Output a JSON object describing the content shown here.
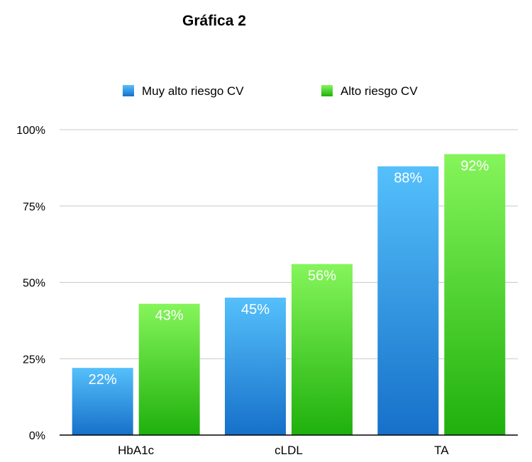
{
  "chart_data": {
    "type": "bar",
    "title": "Gráfica 2",
    "categories": [
      "HbA1c",
      "cLDL",
      "TA"
    ],
    "series": [
      {
        "name": "Muy alto riesgo CV",
        "values": [
          22,
          45,
          88
        ],
        "labels": [
          "22%",
          "45%",
          "88%"
        ],
        "color": "#2f9be6"
      },
      {
        "name": "Alto riesgo CV",
        "values": [
          43,
          56,
          92
        ],
        "labels": [
          "43%",
          "56%",
          "92%"
        ],
        "color": "#4fd12a"
      }
    ],
    "y_ticks": [
      {
        "value": 0,
        "label": "0%"
      },
      {
        "value": 25,
        "label": "25%"
      },
      {
        "value": 50,
        "label": "50%"
      },
      {
        "value": 75,
        "label": "75%"
      },
      {
        "value": 100,
        "label": "100%"
      }
    ],
    "ylim": [
      0,
      100
    ],
    "grid": true,
    "legend_position": "top"
  }
}
